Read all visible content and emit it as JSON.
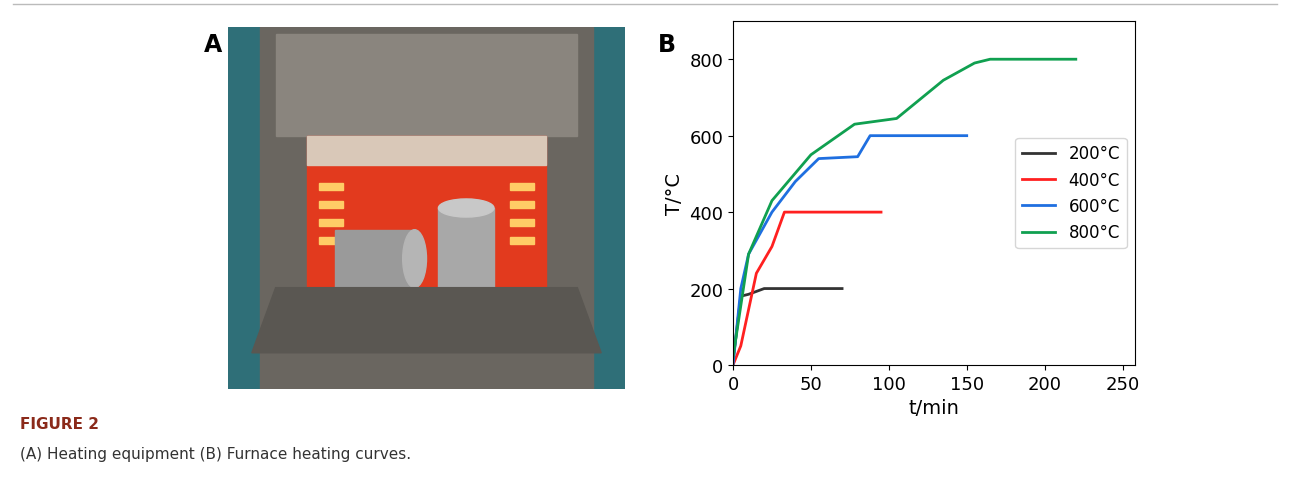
{
  "figure": {
    "label": "FIGURE 2",
    "caption": "(A) Heating equipment (B) Furnace heating curves."
  },
  "panel_labels": [
    "A",
    "B"
  ],
  "chart_data": {
    "type": "line",
    "x_label": "t/min",
    "y_label": "T/°C",
    "xlim": [
      0,
      258
    ],
    "ylim": [
      0,
      900
    ],
    "xticks": [
      0,
      50,
      100,
      150,
      200,
      250
    ],
    "yticks": [
      0,
      200,
      400,
      600,
      800
    ],
    "grid": false,
    "legend": "center right",
    "series": [
      {
        "name": "200°C",
        "color": "#333333",
        "x": [
          0,
          5,
          10,
          20,
          70
        ],
        "values": [
          10,
          180,
          185,
          200,
          200
        ]
      },
      {
        "name": "400°C",
        "color": "#ff2020",
        "x": [
          0,
          5,
          15,
          25,
          33,
          95
        ],
        "values": [
          0,
          50,
          240,
          310,
          400,
          400
        ]
      },
      {
        "name": "600°C",
        "color": "#1f6fe0",
        "x": [
          0,
          5,
          10,
          25,
          40,
          55,
          80,
          88,
          150
        ],
        "values": [
          0,
          200,
          290,
          400,
          480,
          540,
          545,
          600,
          600
        ]
      },
      {
        "name": "800°C",
        "color": "#10a050",
        "x": [
          0,
          10,
          25,
          50,
          78,
          105,
          135,
          155,
          165,
          220
        ],
        "values": [
          20,
          290,
          430,
          550,
          630,
          645,
          745,
          790,
          800,
          800
        ]
      }
    ]
  }
}
